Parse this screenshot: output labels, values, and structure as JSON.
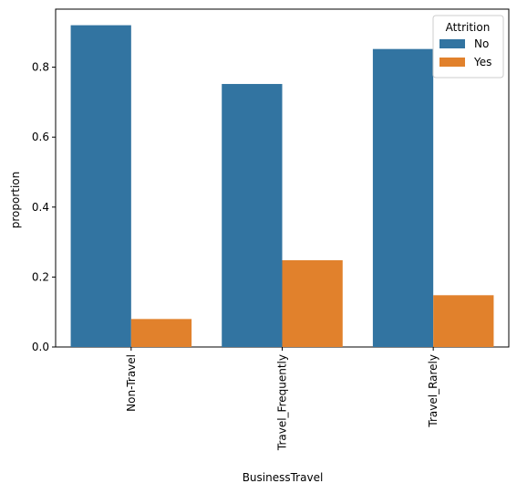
{
  "chart_data": {
    "type": "bar",
    "title": "",
    "xlabel": "BusinessTravel",
    "ylabel": "proportion",
    "categories": [
      "Non-Travel",
      "Travel_Frequently",
      "Travel_Rarely"
    ],
    "series": [
      {
        "name": "No",
        "values": [
          0.92,
          0.752,
          0.852
        ],
        "color": "#3274a1"
      },
      {
        "name": "Yes",
        "values": [
          0.08,
          0.248,
          0.148
        ],
        "color": "#e1812c"
      }
    ],
    "ylim": [
      0,
      0.966
    ],
    "yticks": [
      0.0,
      0.2,
      0.4,
      0.6,
      0.8
    ],
    "ytick_labels": [
      "0.0",
      "0.2",
      "0.4",
      "0.6",
      "0.8"
    ],
    "grid": false,
    "legend": {
      "title": "Attrition",
      "placement": "top-right"
    }
  }
}
